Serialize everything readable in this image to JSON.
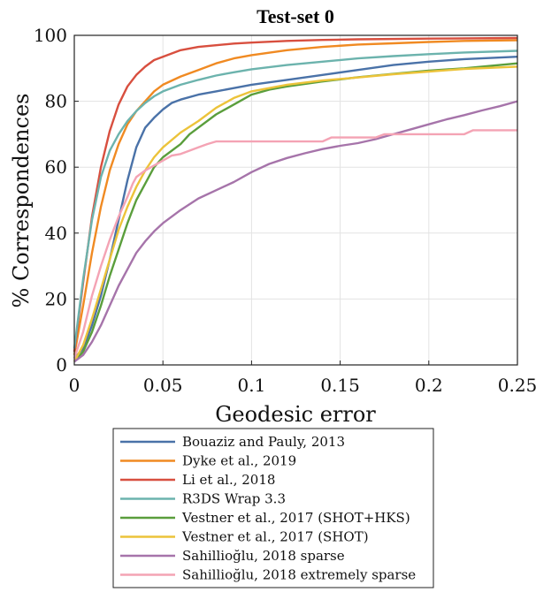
{
  "chart_data": {
    "type": "line",
    "title": "Test-set 0",
    "xlabel": "Geodesic error",
    "ylabel": "% Correspondences",
    "xlim": [
      0,
      0.25
    ],
    "ylim": [
      0,
      100
    ],
    "xticks": [
      0,
      0.05,
      0.1,
      0.15,
      0.2,
      0.25
    ],
    "xtick_labels": [
      "0",
      "0.05",
      "0.1",
      "0.15",
      "0.2",
      "0.25"
    ],
    "yticks": [
      0,
      20,
      40,
      60,
      80,
      100
    ],
    "ytick_labels": [
      "0",
      "20",
      "40",
      "60",
      "80",
      "100"
    ],
    "grid": true,
    "legend_position": "bottom",
    "series": [
      {
        "name": "Bouaziz and Pauly, 2013",
        "color": "#4a72a8",
        "points": [
          [
            0,
            2
          ],
          [
            0.005,
            5
          ],
          [
            0.01,
            12
          ],
          [
            0.015,
            21
          ],
          [
            0.02,
            32
          ],
          [
            0.025,
            44
          ],
          [
            0.03,
            56
          ],
          [
            0.035,
            66
          ],
          [
            0.04,
            72
          ],
          [
            0.045,
            75
          ],
          [
            0.05,
            77.5
          ],
          [
            0.055,
            79.5
          ],
          [
            0.06,
            80.5
          ],
          [
            0.07,
            82
          ],
          [
            0.08,
            83
          ],
          [
            0.09,
            84
          ],
          [
            0.1,
            85
          ],
          [
            0.12,
            86.5
          ],
          [
            0.14,
            88
          ],
          [
            0.16,
            89.5
          ],
          [
            0.18,
            91
          ],
          [
            0.2,
            92
          ],
          [
            0.22,
            92.8
          ],
          [
            0.25,
            93.5
          ]
        ]
      },
      {
        "name": "Dyke et al., 2019",
        "color": "#f08a22",
        "points": [
          [
            0,
            3
          ],
          [
            0.005,
            18
          ],
          [
            0.01,
            34
          ],
          [
            0.015,
            48
          ],
          [
            0.02,
            59
          ],
          [
            0.025,
            67
          ],
          [
            0.03,
            73
          ],
          [
            0.035,
            77
          ],
          [
            0.04,
            80
          ],
          [
            0.045,
            83
          ],
          [
            0.05,
            85
          ],
          [
            0.06,
            87.5
          ],
          [
            0.07,
            89.5
          ],
          [
            0.08,
            91.5
          ],
          [
            0.09,
            93
          ],
          [
            0.1,
            94
          ],
          [
            0.12,
            95.5
          ],
          [
            0.14,
            96.5
          ],
          [
            0.16,
            97.2
          ],
          [
            0.18,
            97.6
          ],
          [
            0.2,
            98
          ],
          [
            0.22,
            98.3
          ],
          [
            0.25,
            98.5
          ]
        ]
      },
      {
        "name": "Li et al., 2018",
        "color": "#d84f3f",
        "points": [
          [
            0,
            4
          ],
          [
            0.005,
            25
          ],
          [
            0.01,
            45
          ],
          [
            0.015,
            60
          ],
          [
            0.02,
            71
          ],
          [
            0.025,
            79
          ],
          [
            0.03,
            84.5
          ],
          [
            0.035,
            88
          ],
          [
            0.04,
            90.5
          ],
          [
            0.045,
            92.5
          ],
          [
            0.05,
            93.5
          ],
          [
            0.06,
            95.5
          ],
          [
            0.07,
            96.5
          ],
          [
            0.08,
            97
          ],
          [
            0.09,
            97.5
          ],
          [
            0.1,
            97.8
          ],
          [
            0.12,
            98.3
          ],
          [
            0.14,
            98.6
          ],
          [
            0.16,
            98.8
          ],
          [
            0.2,
            99
          ],
          [
            0.25,
            99.2
          ]
        ]
      },
      {
        "name": "R3DS Wrap 3.3",
        "color": "#6cb3ad",
        "points": [
          [
            0,
            5
          ],
          [
            0.005,
            26
          ],
          [
            0.01,
            44
          ],
          [
            0.015,
            57
          ],
          [
            0.02,
            65
          ],
          [
            0.025,
            70
          ],
          [
            0.03,
            74
          ],
          [
            0.035,
            77
          ],
          [
            0.04,
            79.5
          ],
          [
            0.045,
            81.5
          ],
          [
            0.05,
            83
          ],
          [
            0.06,
            85
          ],
          [
            0.07,
            86.5
          ],
          [
            0.08,
            87.8
          ],
          [
            0.09,
            88.8
          ],
          [
            0.1,
            89.7
          ],
          [
            0.12,
            91
          ],
          [
            0.14,
            92
          ],
          [
            0.16,
            93
          ],
          [
            0.18,
            93.7
          ],
          [
            0.2,
            94.3
          ],
          [
            0.22,
            94.8
          ],
          [
            0.25,
            95.3
          ]
        ]
      },
      {
        "name": "Vestner et al., 2017 (SHOT+HKS)",
        "color": "#5a9e3c",
        "points": [
          [
            0,
            1
          ],
          [
            0.005,
            4
          ],
          [
            0.01,
            10
          ],
          [
            0.015,
            18
          ],
          [
            0.02,
            27
          ],
          [
            0.025,
            35
          ],
          [
            0.03,
            43
          ],
          [
            0.035,
            50
          ],
          [
            0.04,
            55
          ],
          [
            0.045,
            60
          ],
          [
            0.05,
            63
          ],
          [
            0.06,
            67
          ],
          [
            0.065,
            70
          ],
          [
            0.07,
            72
          ],
          [
            0.08,
            76
          ],
          [
            0.09,
            79
          ],
          [
            0.1,
            82
          ],
          [
            0.11,
            83.5
          ],
          [
            0.12,
            84.5
          ],
          [
            0.14,
            86
          ],
          [
            0.16,
            87.3
          ],
          [
            0.18,
            88.3
          ],
          [
            0.2,
            89.3
          ],
          [
            0.22,
            90
          ],
          [
            0.25,
            91.5
          ]
        ]
      },
      {
        "name": "Vestner et al., 2017 (SHOT)",
        "color": "#ecc33a",
        "points": [
          [
            0,
            1
          ],
          [
            0.005,
            6
          ],
          [
            0.01,
            14
          ],
          [
            0.015,
            23
          ],
          [
            0.02,
            32
          ],
          [
            0.025,
            41
          ],
          [
            0.03,
            48
          ],
          [
            0.035,
            54
          ],
          [
            0.04,
            59
          ],
          [
            0.045,
            63
          ],
          [
            0.05,
            66
          ],
          [
            0.06,
            70.5
          ],
          [
            0.07,
            74
          ],
          [
            0.08,
            78
          ],
          [
            0.09,
            81
          ],
          [
            0.1,
            83
          ],
          [
            0.12,
            85
          ],
          [
            0.14,
            86.3
          ],
          [
            0.16,
            87.2
          ],
          [
            0.18,
            88.2
          ],
          [
            0.2,
            89
          ],
          [
            0.22,
            89.8
          ],
          [
            0.25,
            90.5
          ]
        ]
      },
      {
        "name": "Sahillioğlu, 2018 sparse",
        "color": "#a674aa",
        "points": [
          [
            0,
            1
          ],
          [
            0.005,
            3
          ],
          [
            0.01,
            7
          ],
          [
            0.015,
            12
          ],
          [
            0.02,
            18
          ],
          [
            0.025,
            24
          ],
          [
            0.03,
            29
          ],
          [
            0.035,
            34
          ],
          [
            0.04,
            37.5
          ],
          [
            0.045,
            40.5
          ],
          [
            0.05,
            43
          ],
          [
            0.06,
            47
          ],
          [
            0.07,
            50.5
          ],
          [
            0.08,
            53
          ],
          [
            0.09,
            55.5
          ],
          [
            0.1,
            58.5
          ],
          [
            0.11,
            61
          ],
          [
            0.12,
            62.8
          ],
          [
            0.13,
            64.2
          ],
          [
            0.14,
            65.5
          ],
          [
            0.15,
            66.5
          ],
          [
            0.16,
            67.3
          ],
          [
            0.17,
            68.5
          ],
          [
            0.18,
            70
          ],
          [
            0.19,
            71.5
          ],
          [
            0.2,
            73
          ],
          [
            0.21,
            74.5
          ],
          [
            0.22,
            75.8
          ],
          [
            0.23,
            77.2
          ],
          [
            0.24,
            78.5
          ],
          [
            0.25,
            80
          ]
        ]
      },
      {
        "name": "Sahillioğlu, 2018 extremely sparse",
        "color": "#f4a3b4",
        "points": [
          [
            0,
            2
          ],
          [
            0.005,
            10
          ],
          [
            0.01,
            21
          ],
          [
            0.015,
            30
          ],
          [
            0.02,
            38
          ],
          [
            0.025,
            45
          ],
          [
            0.03,
            51
          ],
          [
            0.033,
            55
          ],
          [
            0.035,
            57
          ],
          [
            0.04,
            59
          ],
          [
            0.045,
            60.5
          ],
          [
            0.05,
            62
          ],
          [
            0.055,
            63.5
          ],
          [
            0.06,
            64
          ],
          [
            0.065,
            65
          ],
          [
            0.07,
            66
          ],
          [
            0.075,
            67
          ],
          [
            0.08,
            67.8
          ],
          [
            0.14,
            67.8
          ],
          [
            0.145,
            69
          ],
          [
            0.17,
            69
          ],
          [
            0.175,
            70
          ],
          [
            0.22,
            70
          ],
          [
            0.225,
            71.2
          ],
          [
            0.25,
            71.2
          ]
        ]
      }
    ]
  }
}
